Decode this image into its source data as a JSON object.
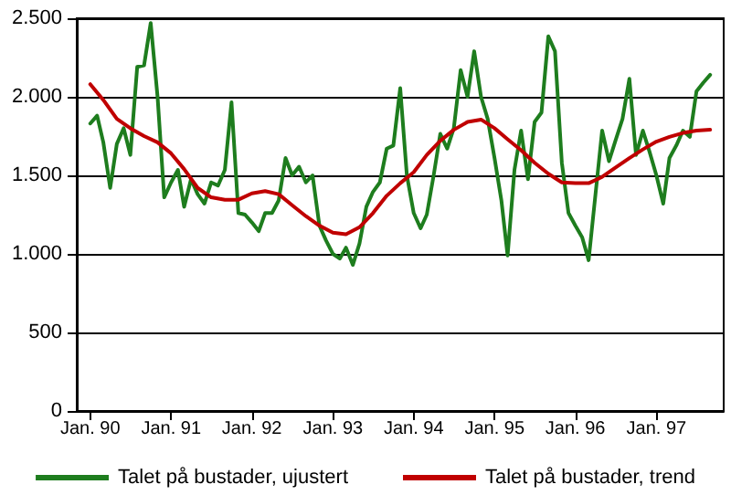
{
  "chart_data": {
    "type": "line",
    "x": [
      "1990-01",
      "1990-02",
      "1990-03",
      "1990-04",
      "1990-05",
      "1990-06",
      "1990-07",
      "1990-08",
      "1990-09",
      "1990-10",
      "1990-11",
      "1990-12",
      "1991-01",
      "1991-02",
      "1991-03",
      "1991-04",
      "1991-05",
      "1991-06",
      "1991-07",
      "1991-08",
      "1991-09",
      "1991-10",
      "1991-11",
      "1991-12",
      "1992-01",
      "1992-02",
      "1992-03",
      "1992-04",
      "1992-05",
      "1992-06",
      "1992-07",
      "1992-08",
      "1992-09",
      "1992-10",
      "1992-11",
      "1992-12",
      "1993-01",
      "1993-02",
      "1993-03",
      "1993-04",
      "1993-05",
      "1993-06",
      "1993-07",
      "1993-08",
      "1993-09",
      "1993-10",
      "1993-11",
      "1993-12",
      "1994-01",
      "1994-02",
      "1994-03",
      "1994-04",
      "1994-05",
      "1994-06",
      "1994-07",
      "1994-08",
      "1994-09",
      "1994-10",
      "1994-11",
      "1994-12",
      "1995-01",
      "1995-02",
      "1995-03",
      "1995-04",
      "1995-05",
      "1995-06",
      "1995-07",
      "1995-08",
      "1995-09",
      "1995-10",
      "1995-11",
      "1995-12",
      "1996-01",
      "1996-02",
      "1996-03",
      "1996-04",
      "1996-05",
      "1996-06",
      "1996-07",
      "1996-08",
      "1996-09",
      "1996-10",
      "1996-11",
      "1996-12",
      "1997-01",
      "1997-02",
      "1997-03",
      "1997-04",
      "1997-05",
      "1997-06",
      "1997-07",
      "1997-08",
      "1997-09"
    ],
    "series": [
      {
        "name": "Talet på bustader, ujustert",
        "color": "#1e7d1e",
        "values": [
          1830,
          1880,
          1710,
          1420,
          1700,
          1800,
          1630,
          2190,
          2200,
          2470,
          2000,
          1360,
          1455,
          1535,
          1300,
          1475,
          1380,
          1320,
          1455,
          1435,
          1535,
          1965,
          1260,
          1250,
          1200,
          1145,
          1260,
          1260,
          1340,
          1610,
          1500,
          1555,
          1455,
          1500,
          1180,
          1085,
          1000,
          970,
          1040,
          930,
          1066,
          1300,
          1395,
          1455,
          1670,
          1690,
          2055,
          1500,
          1260,
          1163,
          1250,
          1500,
          1764,
          1670,
          1800,
          2170,
          2000,
          2290,
          2000,
          1860,
          1610,
          1340,
          990,
          1535,
          1785,
          1475,
          1840,
          1900,
          2385,
          2290,
          1580,
          1260,
          1180,
          1105,
          960,
          1380,
          1785,
          1590,
          1725,
          1860,
          2115,
          1630,
          1785,
          1650,
          1500,
          1320,
          1610,
          1690,
          1785,
          1745,
          2035,
          2090,
          2140
        ]
      },
      {
        "name": "Talet på bustader, trend",
        "color": "#c00000",
        "x": [
          "1990-01",
          "1990-03",
          "1990-05",
          "1990-07",
          "1990-09",
          "1990-11",
          "1991-01",
          "1991-03",
          "1991-05",
          "1991-07",
          "1991-09",
          "1991-11",
          "1992-01",
          "1992-03",
          "1992-05",
          "1992-07",
          "1992-09",
          "1992-11",
          "1993-01",
          "1993-03",
          "1993-05",
          "1993-07",
          "1993-09",
          "1993-11",
          "1994-01",
          "1994-03",
          "1994-05",
          "1994-07",
          "1994-09",
          "1994-11",
          "1995-01",
          "1995-03",
          "1995-05",
          "1995-07",
          "1995-09",
          "1995-11",
          "1996-01",
          "1996-03",
          "1996-05",
          "1996-07",
          "1996-09",
          "1996-11",
          "1997-01",
          "1997-03",
          "1997-05",
          "1997-07",
          "1997-09"
        ],
        "values": [
          2080,
          1980,
          1860,
          1800,
          1750,
          1710,
          1640,
          1540,
          1420,
          1360,
          1345,
          1345,
          1385,
          1400,
          1380,
          1310,
          1240,
          1180,
          1135,
          1125,
          1170,
          1260,
          1370,
          1450,
          1520,
          1630,
          1720,
          1790,
          1840,
          1855,
          1800,
          1730,
          1660,
          1580,
          1510,
          1455,
          1450,
          1450,
          1490,
          1550,
          1610,
          1665,
          1715,
          1745,
          1770,
          1785,
          1790
        ]
      }
    ],
    "xlim": [
      "1989-11",
      "1997-11"
    ],
    "xticks": [
      {
        "value": "1990-01",
        "label": "Jan. 90"
      },
      {
        "value": "1991-01",
        "label": "Jan. 91"
      },
      {
        "value": "1992-01",
        "label": "Jan. 92"
      },
      {
        "value": "1993-01",
        "label": "Jan. 93"
      },
      {
        "value": "1994-01",
        "label": "Jan. 94"
      },
      {
        "value": "1995-01",
        "label": "Jan. 95"
      },
      {
        "value": "1996-01",
        "label": "Jan. 96"
      },
      {
        "value": "1997-01",
        "label": "Jan. 97"
      }
    ],
    "ylim": [
      0,
      2500
    ],
    "yticks": [
      0,
      500,
      {
        "value": 1000,
        "label": "1.000"
      },
      {
        "value": 1500,
        "label": "1.500"
      },
      {
        "value": 2000,
        "label": "2.000"
      },
      {
        "value": 2500,
        "label": "2.500"
      }
    ],
    "grid": "y",
    "legend": "bottom"
  }
}
